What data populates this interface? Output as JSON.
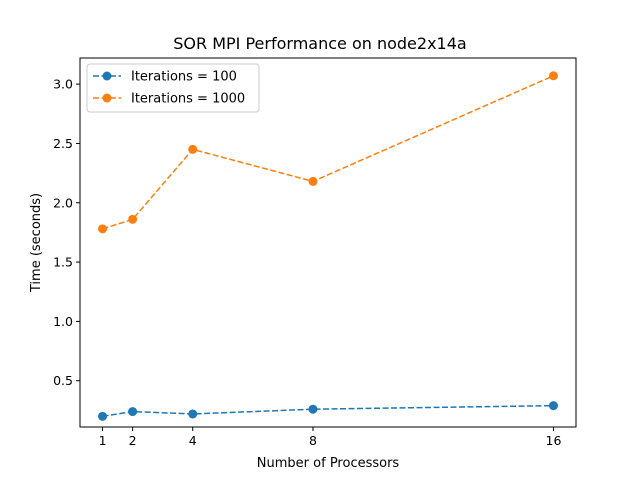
{
  "chart_data": {
    "type": "line",
    "title": "SOR MPI Performance on node2x14a",
    "xlabel": "Number of Processors",
    "ylabel": "Time (seconds)",
    "x": [
      1,
      2,
      4,
      8,
      16
    ],
    "xticks": [
      "1",
      "2",
      "4",
      "8",
      "16"
    ],
    "yticks": [
      "0.5",
      "1.0",
      "1.5",
      "2.0",
      "2.5",
      "3.0"
    ],
    "ytick_values": [
      0.5,
      1.0,
      1.5,
      2.0,
      2.5,
      3.0
    ],
    "xlim": [
      0.25,
      16.75
    ],
    "ylim": [
      0.11,
      3.22
    ],
    "grid": false,
    "legend_position": "top-left",
    "series": [
      {
        "name": "Iterations = 100",
        "color": "#1f77b4",
        "linestyle": "dashed",
        "marker": "circle",
        "values": [
          0.2,
          0.24,
          0.22,
          0.26,
          0.29
        ]
      },
      {
        "name": "Iterations = 1000",
        "color": "#ff7f0e",
        "linestyle": "dashed",
        "marker": "circle",
        "values": [
          1.78,
          1.86,
          2.45,
          2.18,
          3.07
        ]
      }
    ]
  }
}
